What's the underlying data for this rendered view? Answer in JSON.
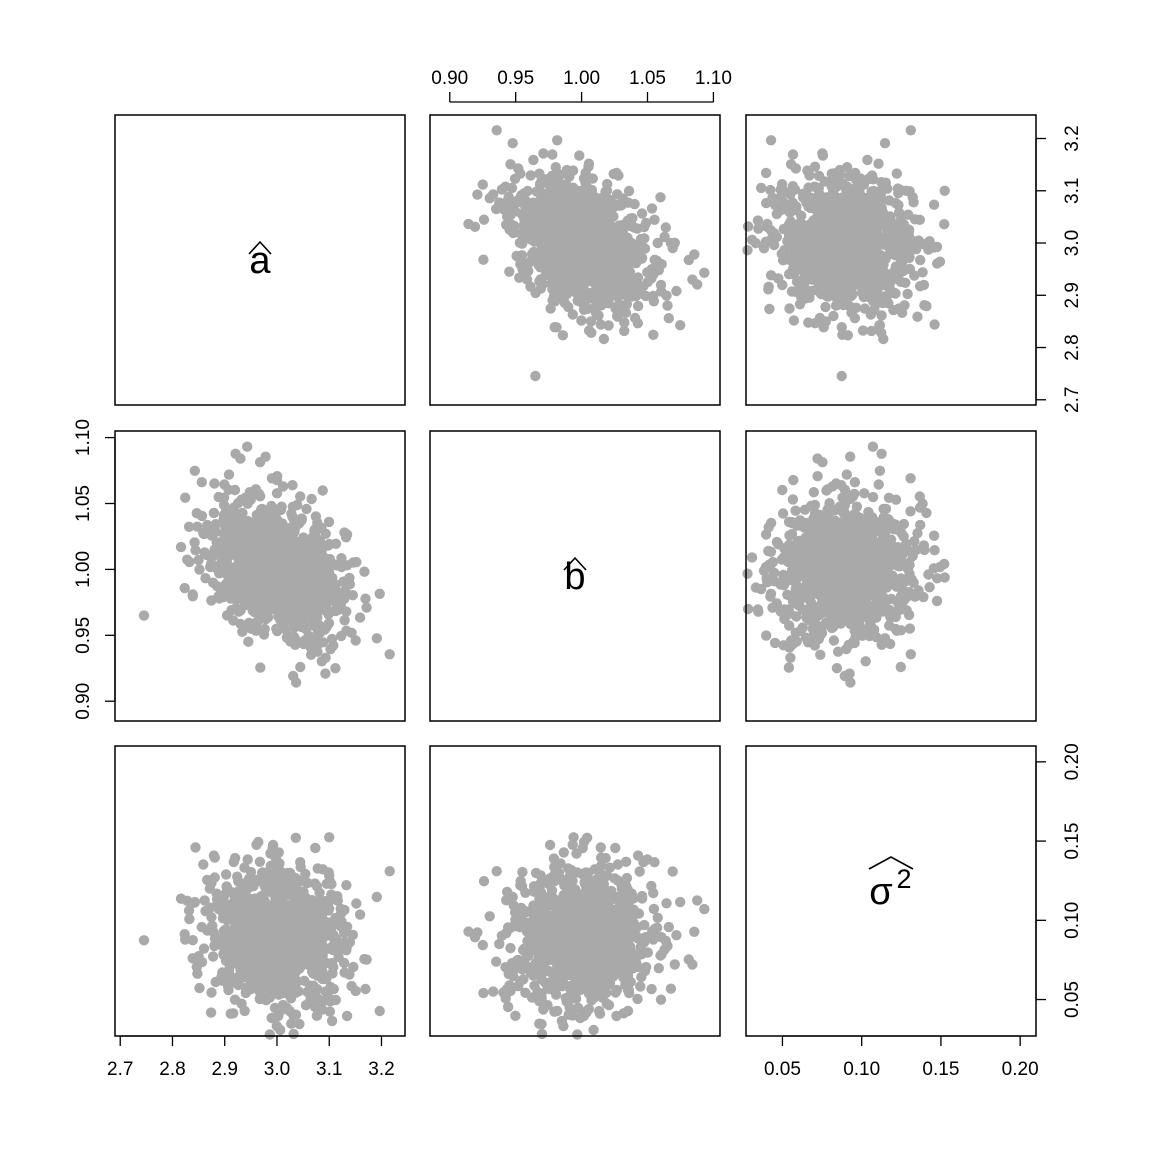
{
  "chart_data": {
    "type": "scatter",
    "matrix_type": "pairs",
    "point_color": "#A9A9A9",
    "n_points": 1000,
    "variables": [
      {
        "name": "a",
        "label": "a",
        "hat": true,
        "range": [
          2.69,
          3.245
        ],
        "ticks": [
          2.7,
          2.8,
          2.9,
          3.0,
          3.1,
          3.2
        ],
        "tick_labels": [
          "2.7",
          "2.8",
          "2.9",
          "3.0",
          "3.1",
          "3.2"
        ],
        "mean": 3.0,
        "sd": 0.065
      },
      {
        "name": "b",
        "label": "b",
        "hat": true,
        "range": [
          0.885,
          1.105
        ],
        "ticks": [
          0.9,
          0.95,
          1.0,
          1.05,
          1.1
        ],
        "tick_labels": [
          "0.90",
          "0.95",
          "1.00",
          "1.05",
          "1.10"
        ],
        "mean": 1.0,
        "sd": 0.028
      },
      {
        "name": "sigma2",
        "label": "σ",
        "superscript": "2",
        "hat": true,
        "range": [
          0.027,
          0.21
        ],
        "ticks": [
          0.05,
          0.1,
          0.15,
          0.2
        ],
        "tick_labels": [
          "0.05",
          "0.10",
          "0.15",
          "0.20"
        ],
        "mean": 0.09,
        "sd": 0.022
      }
    ],
    "correlations": {
      "a_b": -0.35,
      "a_sigma2": 0.02,
      "b_sigma2": 0.02
    },
    "axes_placement": {
      "bottom": [
        "a",
        "sigma2"
      ],
      "top": [
        "b"
      ],
      "left": [
        "b"
      ],
      "right": [
        "a",
        "sigma2"
      ]
    },
    "grid": false,
    "legend": "none"
  }
}
